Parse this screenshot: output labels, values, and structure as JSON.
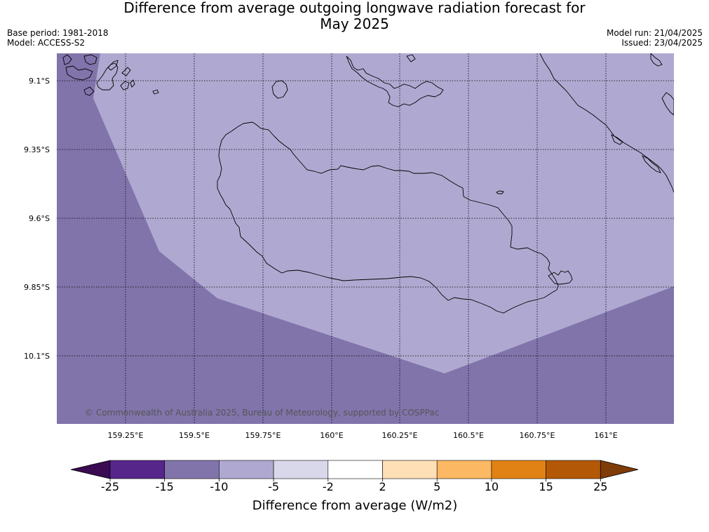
{
  "header": {
    "title_line1": "Difference from average outgoing longwave radiation forecast for",
    "title_line2": "May 2025",
    "base_period": "Base period: 1981-2018",
    "model": "Model: ACCESS-S2",
    "model_run": "Model run: 21/04/2025",
    "issued": "Issued: 23/04/2025"
  },
  "map": {
    "lat_labels": [
      "9.1°S",
      "9.35°S",
      "9.6°S",
      "9.85°S",
      "10.1°S"
    ],
    "lon_labels": [
      "159.25°E",
      "159.5°E",
      "159.75°E",
      "160°E",
      "160.25°E",
      "160.5°E",
      "160.75°E",
      "161°E"
    ],
    "credit": "© Commonwealth of Australia 2025, Bureau of Meteorology, supported by COSPPac",
    "zones": [
      {
        "category": "-15 to -10",
        "color": "#8174ab"
      },
      {
        "category": "-10 to -5",
        "color": "#afa9d1"
      }
    ],
    "coastline_color": "#000000",
    "gridline_style": "dotted"
  },
  "colorbar": {
    "label": "Difference from average (W/m2)",
    "ticks": [
      "-25",
      "-15",
      "-10",
      "-5",
      "-2",
      "2",
      "5",
      "10",
      "15",
      "25"
    ],
    "colors": {
      "below": "#3a0a52",
      "bins": [
        "#57268a",
        "#8174ab",
        "#afa9d1",
        "#d9d8ea",
        "#ffffff",
        "#ffdfb6",
        "#fdb863",
        "#e08214",
        "#b35806"
      ],
      "above": "#7f3b08"
    }
  }
}
